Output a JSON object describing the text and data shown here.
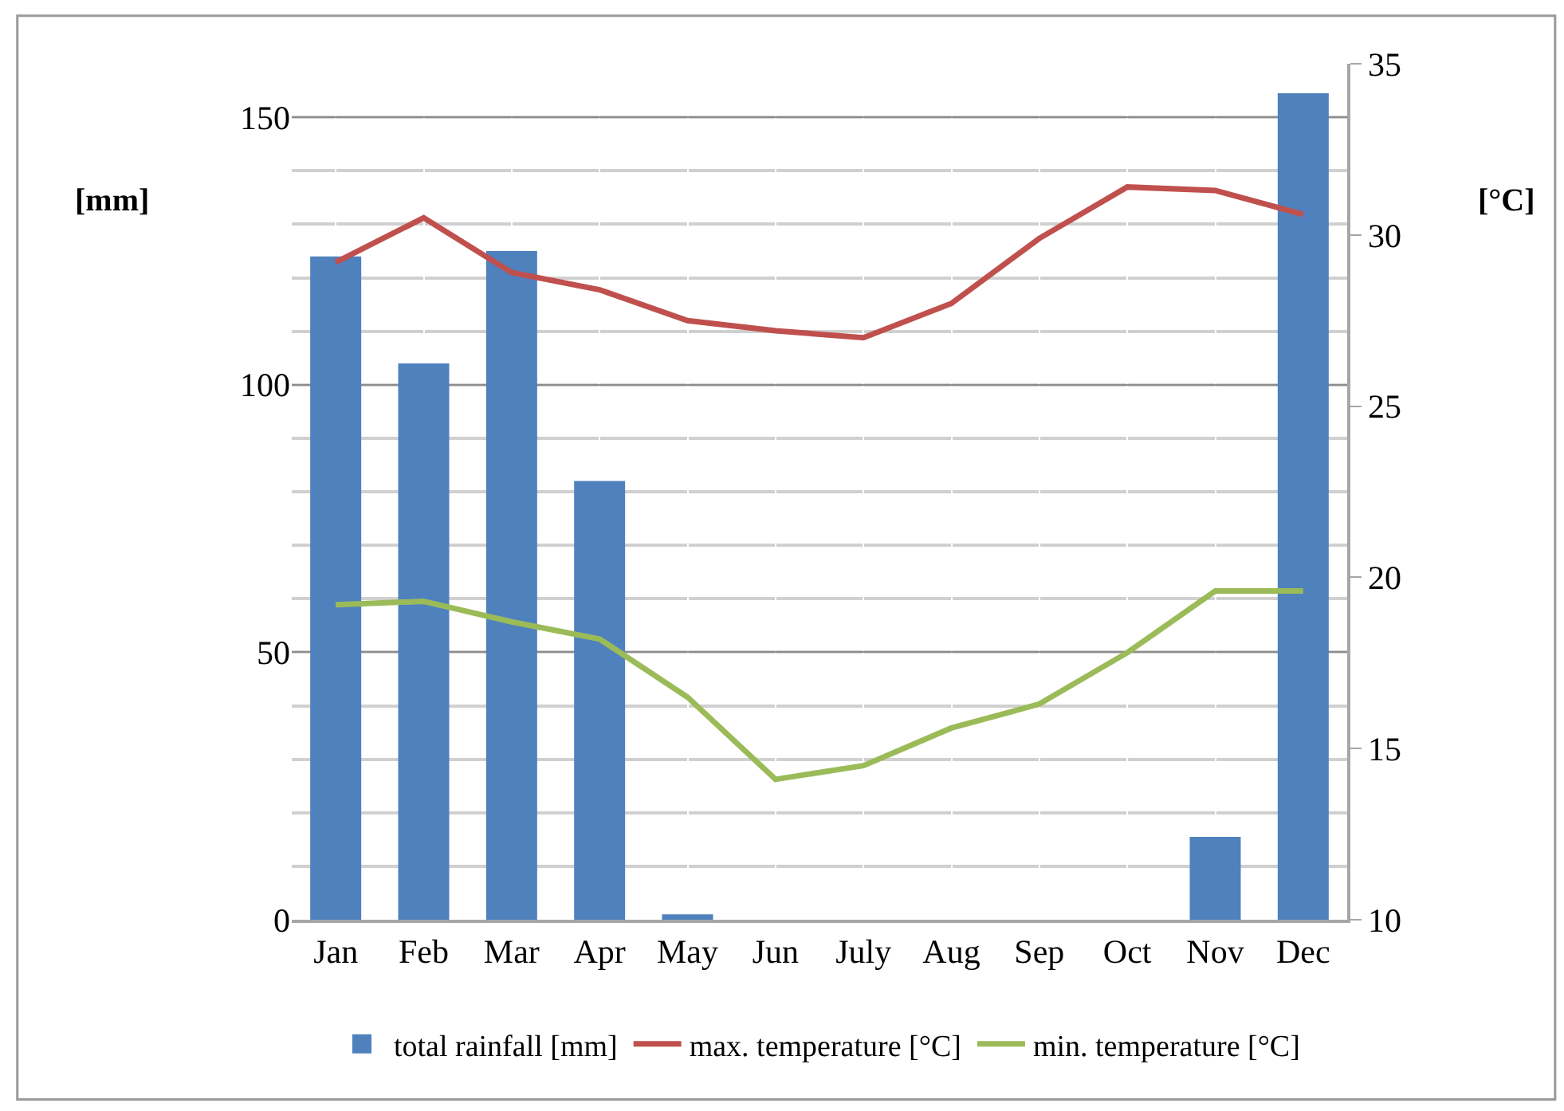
{
  "chart_data": {
    "type": "bar",
    "categories": [
      "Jan",
      "Feb",
      "Mar",
      "Apr",
      "May",
      "Jun",
      "July",
      "Aug",
      "Sep",
      "Oct",
      "Nov",
      "Dec"
    ],
    "ylabel": "[mm]",
    "y2label": "[°C]",
    "series": [
      {
        "name": "total rainfall [mm]",
        "color": "#4f81bd",
        "values": [
          124,
          104,
          125,
          82,
          1,
          0,
          0,
          0,
          0,
          0,
          15.5,
          154.5
        ]
      },
      {
        "name": "max. temperature [°C]",
        "type": "line",
        "axis": "y2",
        "color": "#c0504d",
        "values": [
          29.2,
          30.5,
          28.9,
          28.4,
          27.5,
          27.2,
          27.0,
          28.0,
          29.9,
          31.4,
          31.3,
          30.6
        ]
      },
      {
        "name": "min. temperature [°C]",
        "type": "line",
        "axis": "y2",
        "color": "#9bbb59",
        "values": [
          19.2,
          19.3,
          18.7,
          18.2,
          16.5,
          14.1,
          14.5,
          15.6,
          16.3,
          17.8,
          19.6,
          19.6
        ]
      }
    ],
    "ylim": [
      0,
      160
    ],
    "yticks": [
      0,
      50,
      100,
      150
    ],
    "y2lim": [
      10,
      35
    ],
    "y2ticks": [
      10,
      15,
      20,
      25,
      30,
      35
    ],
    "grid": true,
    "legend": "bottom",
    "marker": "none",
    "line_style": "solid"
  }
}
